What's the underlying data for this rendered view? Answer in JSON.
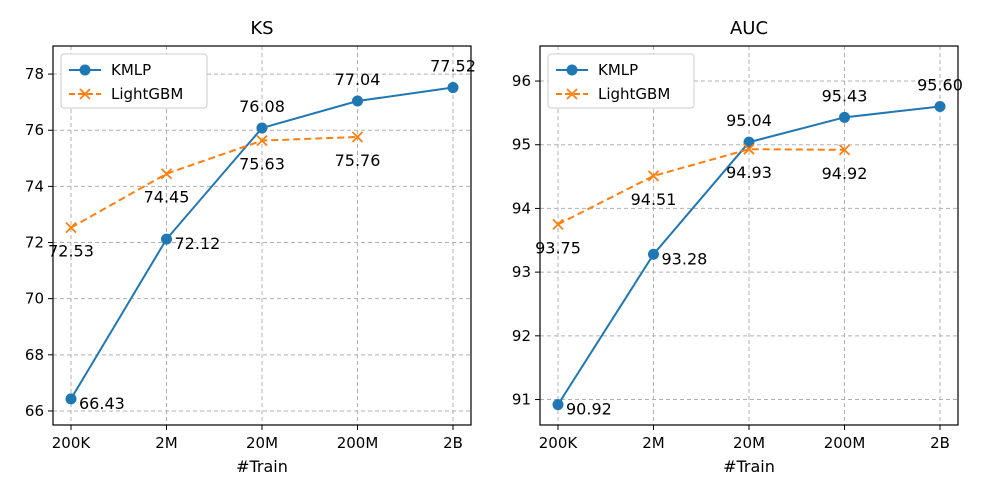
{
  "colors": {
    "kmlp": "#1f77b4",
    "lightgbm": "#ff7f0e"
  },
  "chart_data": [
    {
      "type": "line",
      "title": "KS",
      "xlabel": "#Train",
      "ylabel": "",
      "categories": [
        "200K",
        "2M",
        "20M",
        "200M",
        "2B"
      ],
      "ylim": [
        65.5,
        79.0
      ],
      "yticks": [
        66,
        68,
        70,
        72,
        74,
        76,
        78
      ],
      "ytick_labels": [
        "66",
        "68",
        "70",
        "72",
        "74",
        "76",
        "78"
      ],
      "grid": true,
      "legend": "top-left",
      "series": [
        {
          "name": "KMLP",
          "marker": "circle",
          "style": "solid",
          "values": [
            66.43,
            72.12,
            76.08,
            77.04,
            77.52
          ],
          "labels": [
            "66.43",
            "72.12",
            "76.08",
            "77.04",
            "77.52"
          ],
          "label_side": [
            "right",
            "right",
            "above",
            "above",
            "above"
          ]
        },
        {
          "name": "LightGBM",
          "marker": "x",
          "style": "dashed",
          "values": [
            72.53,
            74.45,
            75.63,
            75.76,
            null
          ],
          "labels": [
            "72.53",
            "74.45",
            "75.63",
            "75.76",
            ""
          ],
          "label_side": [
            "below",
            "below",
            "below",
            "below",
            "below"
          ]
        }
      ]
    },
    {
      "type": "line",
      "title": "AUC",
      "xlabel": "#Train",
      "ylabel": "",
      "categories": [
        "200K",
        "2M",
        "20M",
        "200M",
        "2B"
      ],
      "ylim": [
        90.6,
        96.55
      ],
      "yticks": [
        91,
        92,
        93,
        94,
        95,
        96
      ],
      "ytick_labels": [
        "91",
        "92",
        "93",
        "94",
        "95",
        "96"
      ],
      "grid": true,
      "legend": "top-left",
      "series": [
        {
          "name": "KMLP",
          "marker": "circle",
          "style": "solid",
          "values": [
            90.92,
            93.28,
            95.04,
            95.43,
            95.6
          ],
          "labels": [
            "90.92",
            "93.28",
            "95.04",
            "95.43",
            "95.60"
          ],
          "label_side": [
            "right",
            "right",
            "above",
            "above",
            "above"
          ]
        },
        {
          "name": "LightGBM",
          "marker": "x",
          "style": "dashed",
          "values": [
            93.75,
            94.51,
            94.93,
            94.92,
            null
          ],
          "labels": [
            "93.75",
            "94.51",
            "94.93",
            "94.92",
            ""
          ],
          "label_side": [
            "below",
            "below",
            "below",
            "below",
            "below"
          ]
        }
      ]
    }
  ]
}
